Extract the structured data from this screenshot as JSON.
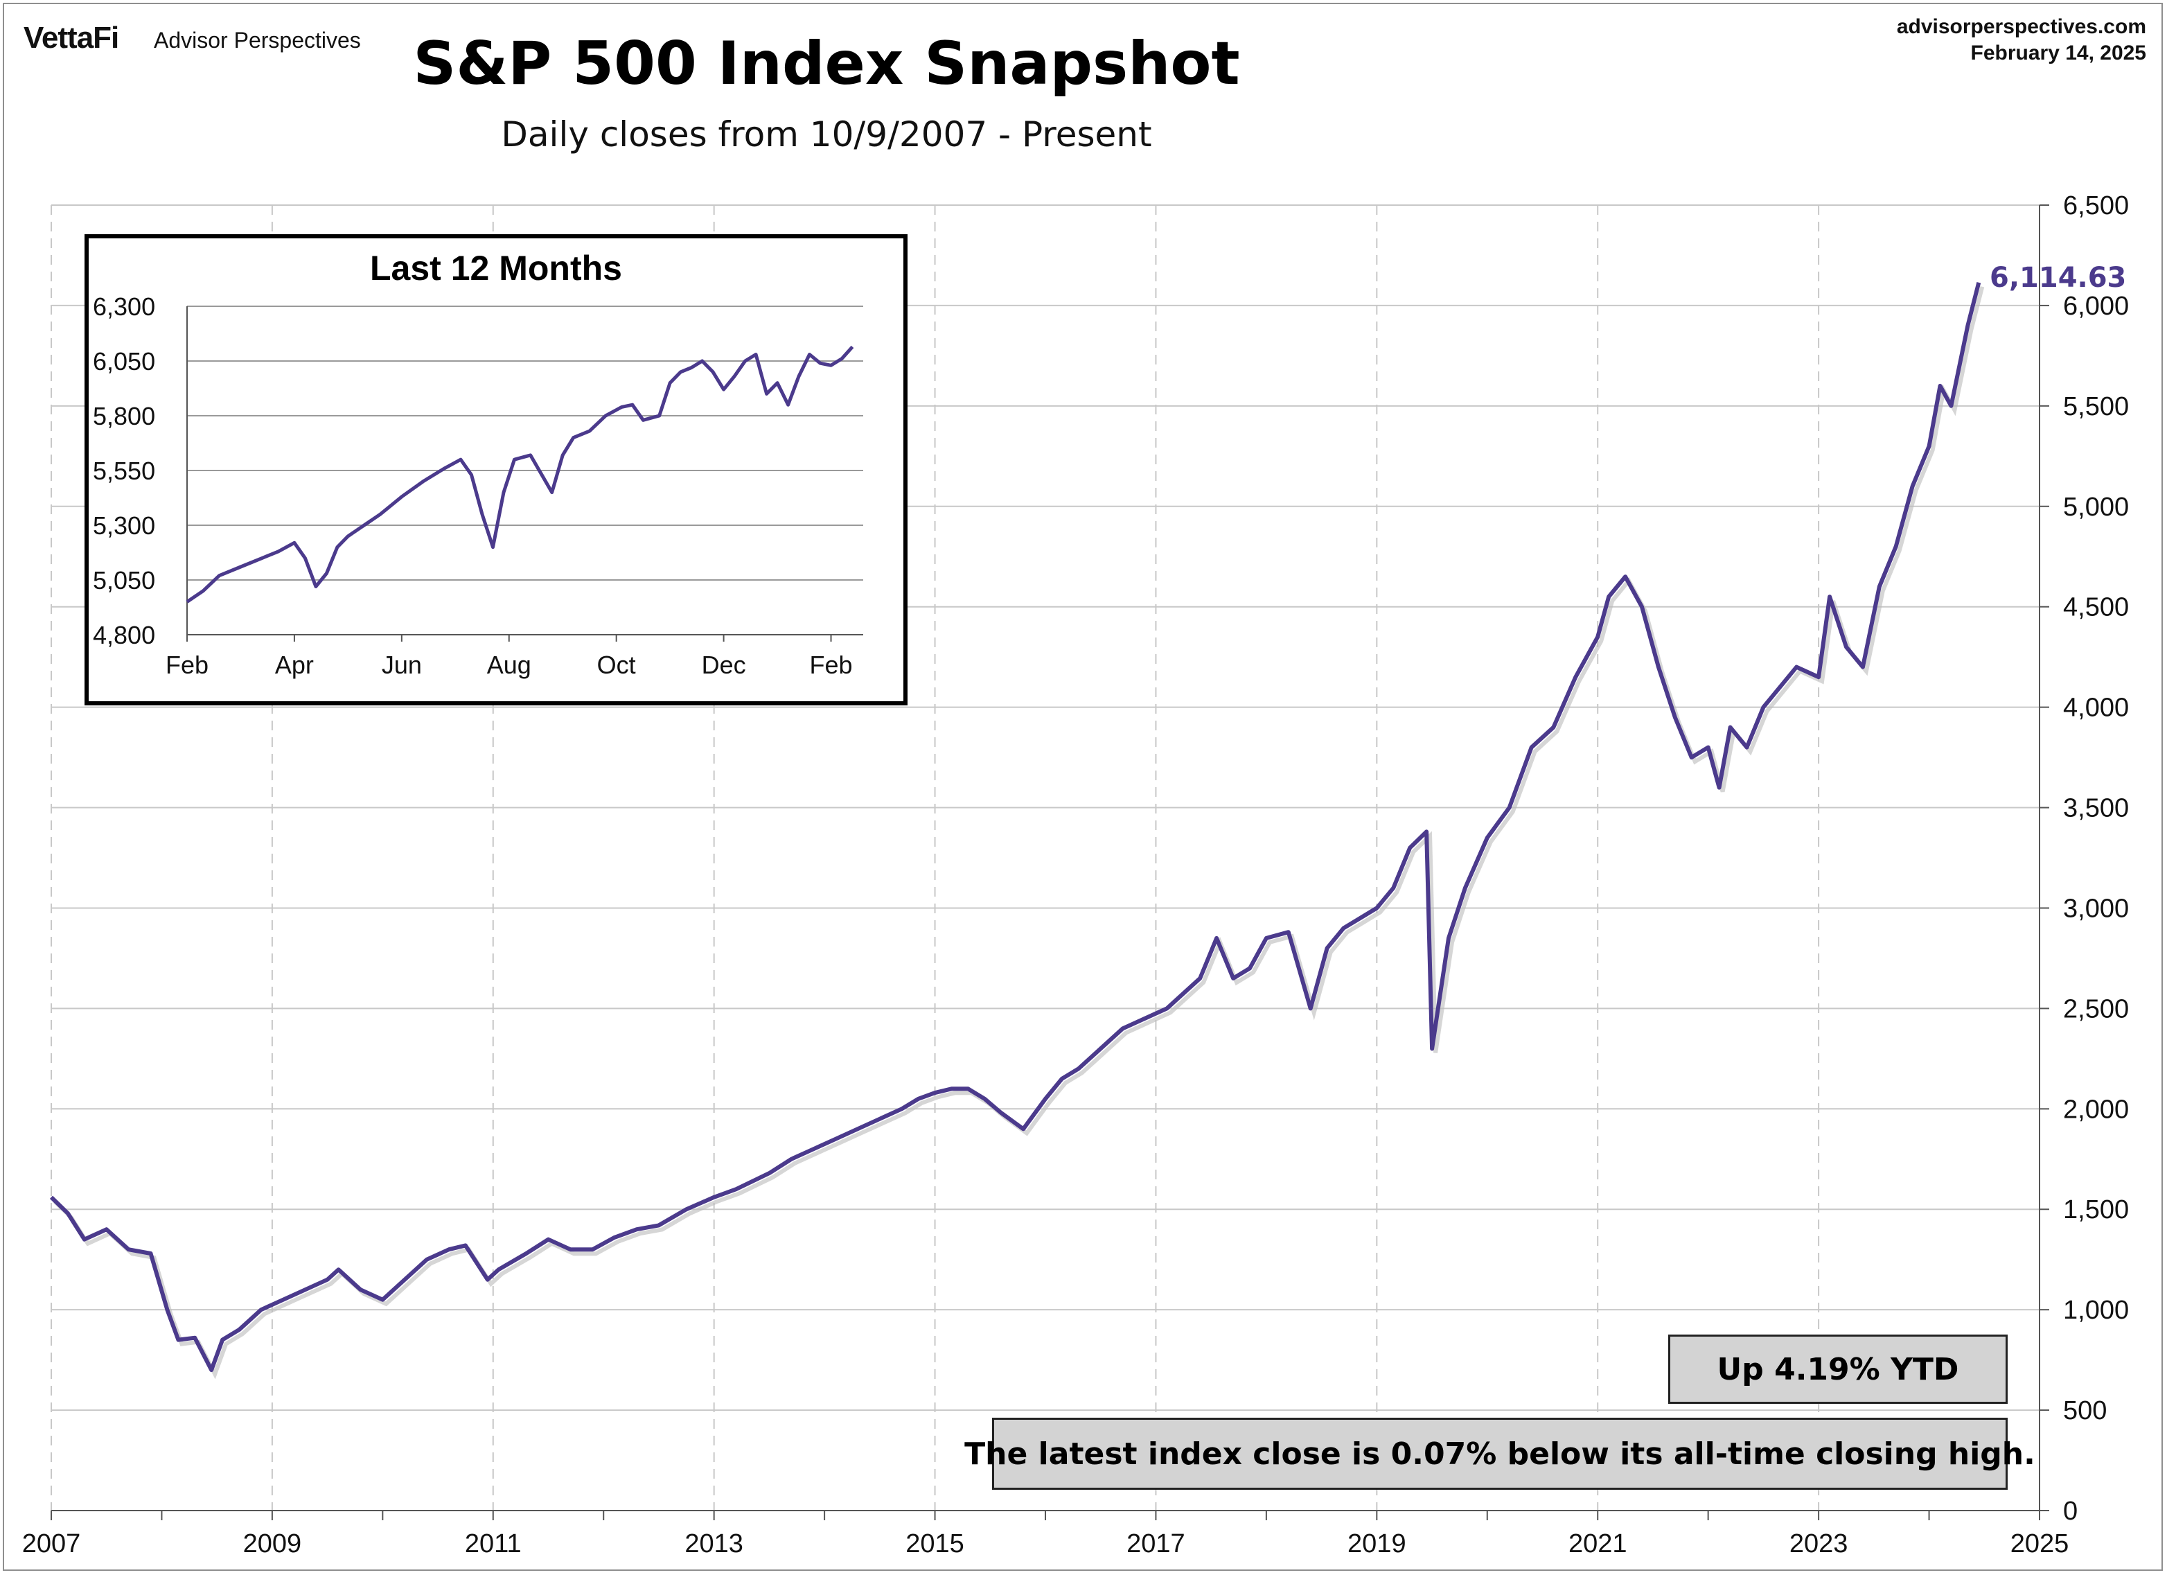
{
  "header": {
    "logo": "VettaFi",
    "logo_sub": "Advisor Perspectives",
    "site": "advisorperspectives.com",
    "date": "February 14, 2025"
  },
  "colors": {
    "line": "#4b3a8c",
    "grid": "#c8c8c8",
    "box": "#d3d3d3"
  },
  "chart_data": [
    {
      "type": "line",
      "title": "S&P 500 Index Snapshot",
      "subtitle": "Daily closes from 10/9/2007 - Present",
      "x_ticks": [
        "2007",
        "2009",
        "2011",
        "2013",
        "2015",
        "2017",
        "2019",
        "2021",
        "2023",
        "2025"
      ],
      "y_ticks": [
        "0",
        "500",
        "1,000",
        "1,500",
        "2,000",
        "2,500",
        "3,000",
        "3,500",
        "4,000",
        "4,500",
        "5,000",
        "5,500",
        "6,000",
        "6,500"
      ],
      "xlim": [
        2007.0,
        2025.0
      ],
      "ylim": [
        0,
        6500
      ],
      "y_axis_side": "right",
      "grid": true,
      "last_value_label": "6,114.63",
      "series": [
        {
          "x": [
            2007.0,
            2007.15,
            2007.3,
            2007.5,
            2007.7,
            2007.9,
            2008.05,
            2008.15,
            2008.3,
            2008.45,
            2008.55,
            2008.7,
            2008.9,
            2009.1,
            2009.3,
            2009.5,
            2009.6,
            2009.8,
            2010.0,
            2010.2,
            2010.4,
            2010.6,
            2010.75,
            2010.95,
            2011.05,
            2011.3,
            2011.5,
            2011.7,
            2011.9,
            2012.1,
            2012.3,
            2012.5,
            2012.75,
            2013.0,
            2013.2,
            2013.5,
            2013.7,
            2013.9,
            2014.1,
            2014.3,
            2014.5,
            2014.7,
            2014.85,
            2015.0,
            2015.15,
            2015.3,
            2015.45,
            2015.6,
            2015.8,
            2016.0,
            2016.15,
            2016.3,
            2016.5,
            2016.7,
            2016.9,
            2017.1,
            2017.2,
            2017.4,
            2017.55,
            2017.7,
            2017.85,
            2018.0,
            2018.2,
            2018.4,
            2018.55,
            2018.7,
            2018.85,
            2019.0,
            2019.15,
            2019.3,
            2019.45,
            2019.5,
            2019.65,
            2019.8,
            2020.0,
            2020.2,
            2020.4,
            2020.6,
            2020.8,
            2021.0,
            2021.1,
            2021.25,
            2021.4,
            2021.55,
            2021.7,
            2021.85,
            2022.0,
            2022.1,
            2022.2,
            2022.35,
            2022.5,
            2022.65,
            2022.8,
            2023.0,
            2023.1,
            2023.25,
            2023.4,
            2023.55,
            2023.7,
            2023.85,
            2024.0,
            2024.1,
            2024.2,
            2024.35,
            2024.45
          ],
          "y": [
            1560,
            1480,
            1350,
            1400,
            1300,
            1280,
            1000,
            850,
            860,
            700,
            850,
            900,
            1000,
            1050,
            1100,
            1150,
            1200,
            1100,
            1050,
            1150,
            1250,
            1300,
            1320,
            1150,
            1200,
            1280,
            1350,
            1300,
            1300,
            1360,
            1400,
            1420,
            1500,
            1560,
            1600,
            1680,
            1750,
            1800,
            1850,
            1900,
            1950,
            2000,
            2050,
            2080,
            2100,
            2100,
            2050,
            1980,
            1900,
            2050,
            2150,
            2200,
            2300,
            2400,
            2450,
            2500,
            2550,
            2650,
            2850,
            2650,
            2700,
            2850,
            2880,
            2500,
            2800,
            2900,
            2950,
            3000,
            3100,
            3300,
            3380,
            2300,
            2850,
            3100,
            3350,
            3500,
            3800,
            3900,
            4150,
            4350,
            4550,
            4650,
            4500,
            4200,
            3950,
            3750,
            3800,
            3600,
            3900,
            3800,
            4000,
            4100,
            4200,
            4150,
            4550,
            4300,
            4200,
            4600,
            4800,
            5100,
            5300,
            5600,
            5500,
            5900,
            6114.63
          ]
        }
      ]
    },
    {
      "type": "line",
      "title": "Last 12 Months",
      "x_ticks": [
        "Feb",
        "Apr",
        "Jun",
        "Aug",
        "Oct",
        "Dec",
        "Feb"
      ],
      "y_ticks": [
        "4,800",
        "5,050",
        "5,300",
        "5,550",
        "5,800",
        "6,050",
        "6,300"
      ],
      "xlim": [
        0,
        12.6
      ],
      "ylim": [
        4800,
        6300
      ],
      "grid": true,
      "series": [
        {
          "x": [
            0,
            0.3,
            0.6,
            1.0,
            1.4,
            1.7,
            2.0,
            2.2,
            2.4,
            2.6,
            2.8,
            3.0,
            3.3,
            3.6,
            4.0,
            4.4,
            4.8,
            5.1,
            5.3,
            5.5,
            5.7,
            5.9,
            6.1,
            6.4,
            6.8,
            7.0,
            7.2,
            7.5,
            7.8,
            8.1,
            8.3,
            8.5,
            8.8,
            9.0,
            9.2,
            9.4,
            9.6,
            9.8,
            10.0,
            10.2,
            10.4,
            10.6,
            10.8,
            11.0,
            11.2,
            11.4,
            11.6,
            11.8,
            12.0,
            12.2,
            12.4
          ],
          "y": [
            4950,
            5000,
            5070,
            5110,
            5150,
            5180,
            5220,
            5150,
            5020,
            5080,
            5200,
            5250,
            5300,
            5350,
            5430,
            5500,
            5560,
            5600,
            5530,
            5350,
            5200,
            5450,
            5600,
            5620,
            5450,
            5620,
            5700,
            5730,
            5800,
            5840,
            5850,
            5780,
            5800,
            5950,
            6000,
            6020,
            6050,
            6000,
            5920,
            5980,
            6050,
            6080,
            5900,
            5950,
            5850,
            5980,
            6080,
            6040,
            6030,
            6060,
            6115
          ]
        }
      ]
    }
  ],
  "annotations": {
    "ytd": "Up 4.19% YTD",
    "ath": "The latest index close is 0.07% below its all-time closing high."
  }
}
